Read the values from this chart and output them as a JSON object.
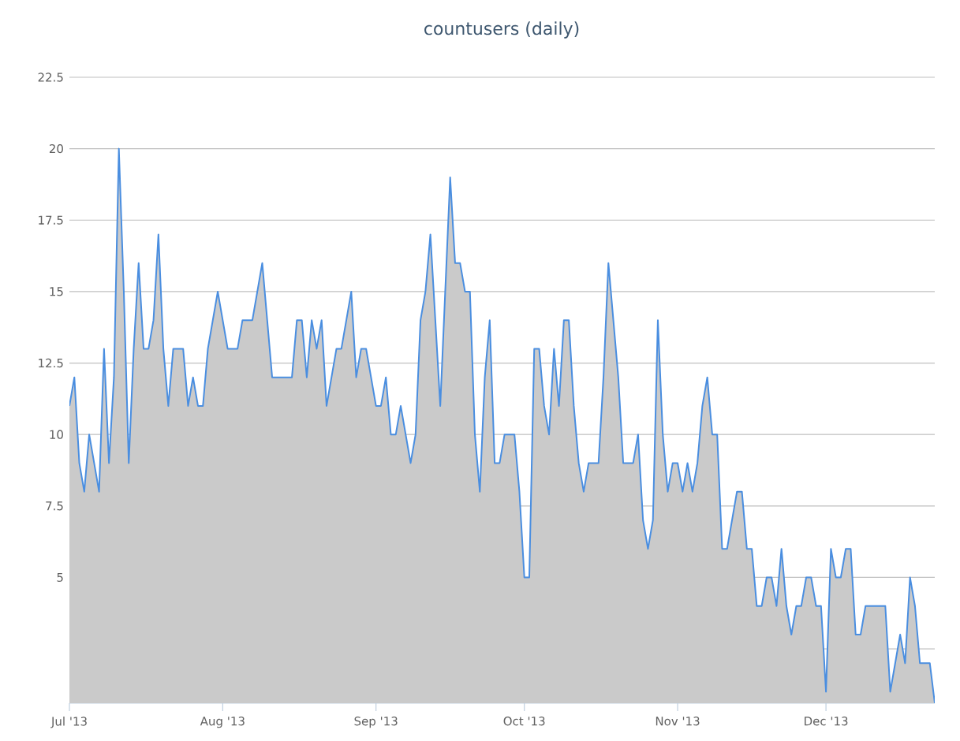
{
  "chart_data": {
    "type": "area",
    "title": "countusers (daily)",
    "x": [
      "2013-07-01",
      "2013-07-02",
      "2013-07-03",
      "2013-07-04",
      "2013-07-05",
      "2013-07-06",
      "2013-07-07",
      "2013-07-08",
      "2013-07-09",
      "2013-07-10",
      "2013-07-11",
      "2013-07-12",
      "2013-07-13",
      "2013-07-14",
      "2013-07-15",
      "2013-07-16",
      "2013-07-17",
      "2013-07-18",
      "2013-07-19",
      "2013-07-20",
      "2013-07-21",
      "2013-07-22",
      "2013-07-23",
      "2013-07-24",
      "2013-07-25",
      "2013-07-26",
      "2013-07-27",
      "2013-07-28",
      "2013-07-29",
      "2013-07-30",
      "2013-07-31",
      "2013-08-01",
      "2013-08-02",
      "2013-08-03",
      "2013-08-04",
      "2013-08-05",
      "2013-08-06",
      "2013-08-07",
      "2013-08-08",
      "2013-08-09",
      "2013-08-10",
      "2013-08-11",
      "2013-08-12",
      "2013-08-13",
      "2013-08-14",
      "2013-08-15",
      "2013-08-16",
      "2013-08-17",
      "2013-08-18",
      "2013-08-19",
      "2013-08-20",
      "2013-08-21",
      "2013-08-22",
      "2013-08-23",
      "2013-08-24",
      "2013-08-25",
      "2013-08-26",
      "2013-08-27",
      "2013-08-28",
      "2013-08-29",
      "2013-08-30",
      "2013-08-31",
      "2013-09-01",
      "2013-09-02",
      "2013-09-03",
      "2013-09-04",
      "2013-09-05",
      "2013-09-06",
      "2013-09-07",
      "2013-09-08",
      "2013-09-09",
      "2013-09-10",
      "2013-09-11",
      "2013-09-12",
      "2013-09-13",
      "2013-09-14",
      "2013-09-15",
      "2013-09-16",
      "2013-09-17",
      "2013-09-18",
      "2013-09-19",
      "2013-09-20",
      "2013-09-21",
      "2013-09-22",
      "2013-09-23",
      "2013-09-24",
      "2013-09-25",
      "2013-09-26",
      "2013-09-27",
      "2013-09-28",
      "2013-09-29",
      "2013-09-30",
      "2013-10-01",
      "2013-10-02",
      "2013-10-03",
      "2013-10-04",
      "2013-10-05",
      "2013-10-06",
      "2013-10-07",
      "2013-10-08",
      "2013-10-09",
      "2013-10-10",
      "2013-10-11",
      "2013-10-12",
      "2013-10-13",
      "2013-10-14",
      "2013-10-15",
      "2013-10-16",
      "2013-10-17",
      "2013-10-18",
      "2013-10-19",
      "2013-10-20",
      "2013-10-21",
      "2013-10-22",
      "2013-10-23",
      "2013-10-24",
      "2013-10-25",
      "2013-10-26",
      "2013-10-27",
      "2013-10-28",
      "2013-10-29",
      "2013-10-30",
      "2013-10-31",
      "2013-11-01",
      "2013-11-02",
      "2013-11-03",
      "2013-11-04",
      "2013-11-05",
      "2013-11-06",
      "2013-11-07",
      "2013-11-08",
      "2013-11-09",
      "2013-11-10",
      "2013-11-11",
      "2013-11-12",
      "2013-11-13",
      "2013-11-14",
      "2013-11-15",
      "2013-11-16",
      "2013-11-17",
      "2013-11-18",
      "2013-11-19",
      "2013-11-20",
      "2013-11-21",
      "2013-11-22",
      "2013-11-23",
      "2013-11-24",
      "2013-11-25",
      "2013-11-26",
      "2013-11-27",
      "2013-11-28",
      "2013-11-29",
      "2013-11-30",
      "2013-12-01",
      "2013-12-02",
      "2013-12-03",
      "2013-12-04",
      "2013-12-05",
      "2013-12-06",
      "2013-12-07",
      "2013-12-08",
      "2013-12-09",
      "2013-12-10",
      "2013-12-11",
      "2013-12-12",
      "2013-12-13",
      "2013-12-14",
      "2013-12-15",
      "2013-12-16",
      "2013-12-17",
      "2013-12-18",
      "2013-12-19",
      "2013-12-20",
      "2013-12-21",
      "2013-12-22",
      "2013-12-23"
    ],
    "series": [
      {
        "color": "#4a8ee0",
        "values": [
          11,
          12,
          9,
          8,
          10,
          9,
          8,
          13,
          9,
          12,
          20,
          15,
          9,
          13,
          16,
          13,
          13,
          14,
          17,
          13,
          11,
          13,
          13,
          13,
          11,
          12,
          11,
          11,
          13,
          14,
          15,
          14,
          13,
          13,
          13,
          14,
          14,
          14,
          15,
          16,
          14,
          12,
          12,
          12,
          12,
          12,
          14,
          14,
          12,
          14,
          13,
          14,
          11,
          12,
          13,
          13,
          14,
          15,
          12,
          13,
          13,
          12,
          11,
          11,
          12,
          10,
          10,
          11,
          10,
          9,
          10,
          14,
          15,
          17,
          14,
          11,
          15,
          19,
          16,
          16,
          15,
          15,
          10,
          8,
          12,
          14,
          9,
          9,
          10,
          10,
          10,
          8,
          5,
          5,
          13,
          13,
          11,
          10,
          13,
          11,
          14,
          14,
          11,
          9,
          8,
          9,
          9,
          9,
          12,
          16,
          14,
          12,
          9,
          9,
          9,
          10,
          7,
          6,
          7,
          14,
          10,
          8,
          9,
          9,
          8,
          9,
          8,
          9,
          11,
          12,
          10,
          10,
          6,
          6,
          7,
          8,
          8,
          6,
          6,
          4,
          4,
          5,
          5,
          4,
          6,
          4,
          3,
          4,
          4,
          5,
          5,
          4,
          4,
          1,
          6,
          5,
          5,
          6,
          6,
          3,
          3,
          4,
          4,
          4,
          4,
          4,
          1,
          2,
          3,
          2,
          5,
          4,
          2,
          2,
          2,
          0.6
        ]
      }
    ],
    "xlim": [
      "2013-07-01",
      "2013-12-23"
    ],
    "xticks": [
      {
        "value": "2013-07-01",
        "label": "Jul '13"
      },
      {
        "value": "2013-08-01",
        "label": "Aug '13"
      },
      {
        "value": "2013-09-01",
        "label": "Sep '13"
      },
      {
        "value": "2013-10-01",
        "label": "Oct '13"
      },
      {
        "value": "2013-11-01",
        "label": "Nov '13"
      },
      {
        "value": "2013-12-01",
        "label": "Dec '13"
      }
    ],
    "ylim": [
      0.6,
      22.5
    ],
    "yticks": [
      {
        "value": 2.5,
        "label": null
      },
      5,
      7.5,
      10,
      12.5,
      15,
      17.5,
      20,
      22.5
    ],
    "grid": "y",
    "legend": false,
    "marker": "none"
  }
}
